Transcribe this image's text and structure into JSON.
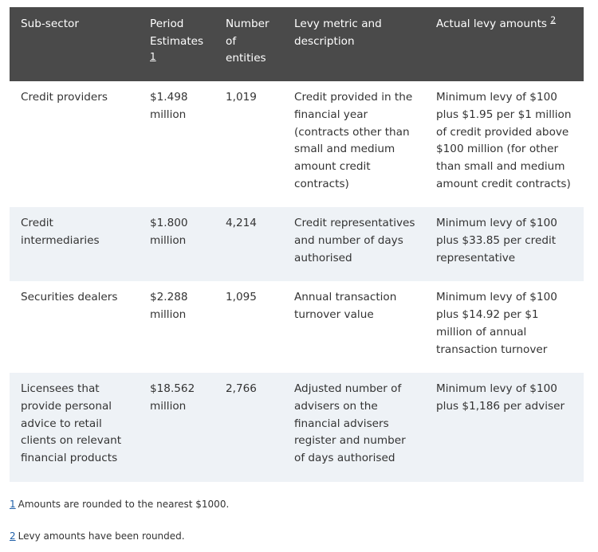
{
  "headers": {
    "subsector": "Sub-sector",
    "period_estimates": "Period Estimates",
    "period_estimates_fn": "1",
    "entities": "Number of entities",
    "metric": "Levy metric and description",
    "actual": "Actual levy amounts",
    "actual_fn": "2"
  },
  "rows": [
    {
      "subsector": "Credit providers",
      "estimate": "$1.498 million",
      "entities": "1,019",
      "metric": "Credit provided in the financial year (contracts other than small and medium amount credit contracts)",
      "actual": "Minimum levy of $100 plus $1.95 per $1 million of credit provided above $100 million (for other than small and medium amount credit contracts)"
    },
    {
      "subsector": "Credit intermediaries",
      "estimate": "$1.800 million",
      "entities": "4,214",
      "metric": "Credit representatives and number of days authorised",
      "actual": "Minimum levy of $100 plus $33.85 per credit representative"
    },
    {
      "subsector": "Securities dealers",
      "estimate": "$2.288 million",
      "entities": "1,095",
      "metric": "Annual transaction turnover value",
      "actual": "Minimum levy of $100 plus $14.92 per $1 million of annual transaction turnover"
    },
    {
      "subsector": "Licensees that provide personal advice to retail clients on relevant financial products",
      "estimate": "$18.562 million",
      "entities": "2,766",
      "metric": "Adjusted number of advisers on the financial advisers register and number of days authorised",
      "actual": "Minimum levy of $100 plus $1,186 per adviser"
    }
  ],
  "footnotes": [
    {
      "marker": "1",
      "text": "Amounts are rounded to the nearest $1000."
    },
    {
      "marker": "2",
      "text": "Levy amounts have been rounded."
    }
  ]
}
